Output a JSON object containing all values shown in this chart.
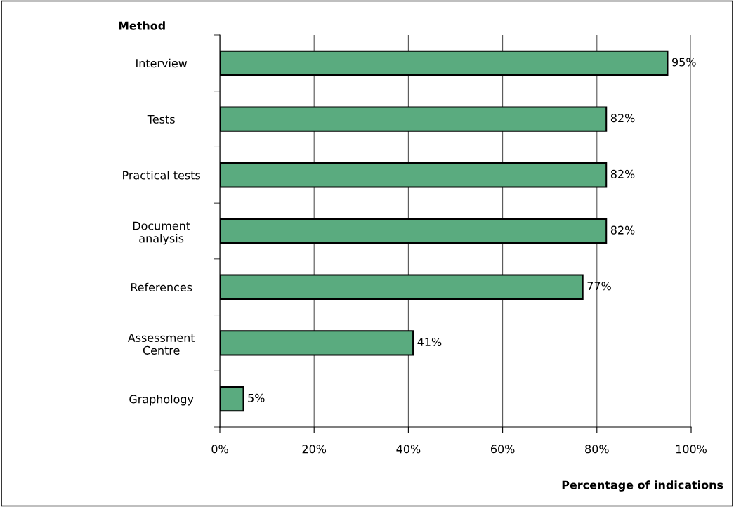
{
  "chart_data": {
    "type": "bar",
    "orientation": "horizontal",
    "ylabel": "Method",
    "xlabel": "Percentage of indications",
    "categories": [
      "Interview",
      "Tests",
      "Practical tests",
      "Document\nanalysis",
      "References",
      "Assessment\nCentre",
      "Graphology"
    ],
    "values": [
      95,
      82,
      82,
      82,
      77,
      41,
      5
    ],
    "value_labels": [
      "95%",
      "82%",
      "82%",
      "82%",
      "77%",
      "41%",
      "5%"
    ],
    "color": "#5aab7f",
    "xlim": [
      0,
      100
    ],
    "xticks": [
      {
        "value": 0,
        "label": "0%"
      },
      {
        "value": 20,
        "label": "20%"
      },
      {
        "value": 40,
        "label": "40%"
      },
      {
        "value": 60,
        "label": "60%"
      },
      {
        "value": 80,
        "label": "80%"
      },
      {
        "value": 100,
        "label": "100%"
      }
    ],
    "grid": "x"
  }
}
